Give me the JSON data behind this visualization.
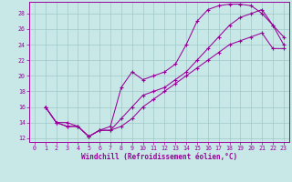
{
  "xlabel": "Windchill (Refroidissement éolien,°C)",
  "xlim": [
    -0.5,
    23.5
  ],
  "ylim": [
    11.5,
    29.5
  ],
  "xticks": [
    0,
    1,
    2,
    3,
    4,
    5,
    6,
    7,
    8,
    9,
    10,
    11,
    12,
    13,
    14,
    15,
    16,
    17,
    18,
    19,
    20,
    21,
    22,
    23
  ],
  "yticks": [
    12,
    14,
    16,
    18,
    20,
    22,
    24,
    26,
    28
  ],
  "background_color": "#c8e8e8",
  "grid_color": "#a0c8c8",
  "line_color": "#990099",
  "line1_x": [
    1,
    2,
    3,
    4,
    5,
    6,
    7,
    8,
    9,
    10,
    11,
    12,
    13,
    14,
    15,
    16,
    17,
    18,
    19,
    20,
    21,
    22,
    23
  ],
  "line1_y": [
    16,
    14,
    14,
    13.5,
    12.2,
    13,
    13.5,
    18.5,
    20.5,
    19.5,
    20,
    20.5,
    21.5,
    24,
    27,
    28.5,
    29,
    29.2,
    29.2,
    29,
    28,
    26.5,
    24
  ],
  "line2_x": [
    1,
    2,
    3,
    4,
    5,
    6,
    7,
    8,
    9,
    10,
    11,
    12,
    13,
    14,
    15,
    16,
    17,
    18,
    19,
    20,
    21,
    22,
    23
  ],
  "line2_y": [
    16,
    14,
    13.5,
    13.5,
    12.2,
    13,
    13,
    14.5,
    16,
    17.5,
    18,
    18.5,
    19.5,
    20.5,
    22,
    23.5,
    25,
    26.5,
    27.5,
    28,
    28.5,
    26.5,
    25
  ],
  "line3_x": [
    1,
    2,
    3,
    4,
    5,
    6,
    7,
    8,
    9,
    10,
    11,
    12,
    13,
    14,
    15,
    16,
    17,
    18,
    19,
    20,
    21,
    22,
    23
  ],
  "line3_y": [
    16,
    14,
    13.5,
    13.5,
    12.2,
    13,
    13,
    13.5,
    14.5,
    16,
    17,
    18,
    19,
    20,
    21,
    22,
    23,
    24,
    24.5,
    25,
    25.5,
    23.5,
    23.5
  ]
}
